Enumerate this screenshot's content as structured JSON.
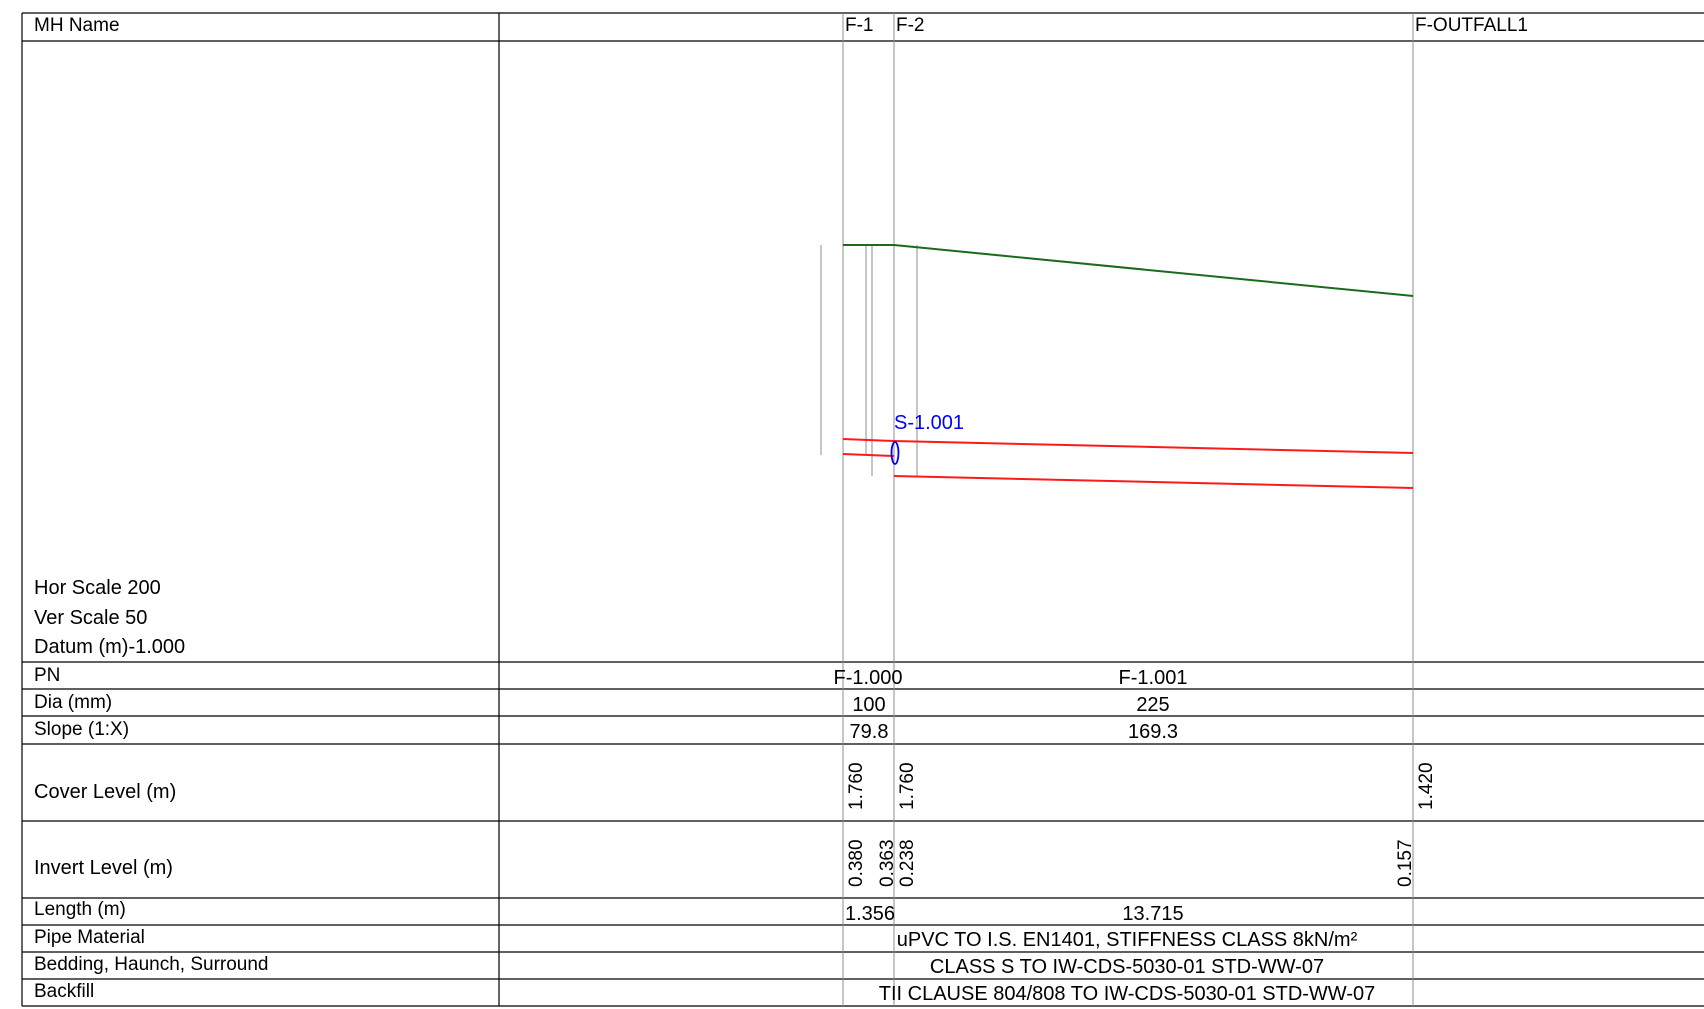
{
  "header": {
    "mh_name_label": "MH Name",
    "manholes": [
      "F-1",
      "F-2",
      "F-OUTFALL1"
    ]
  },
  "profile": {
    "scales": {
      "hor": "Hor Scale 200",
      "ver": "Ver Scale 50",
      "datum": "Datum (m)-1.000"
    },
    "pipe_label": "S-1.001",
    "colors": {
      "ground": "#1a6b1a",
      "pipe": "#ff1a1a",
      "pipe_label": "#0000ff",
      "grid": "#000000",
      "chainage": "#8c8c8c"
    }
  },
  "rows": {
    "pn": {
      "label": "PN",
      "values": [
        "F-1.000",
        "F-1.001"
      ]
    },
    "dia": {
      "label": "Dia (mm)",
      "values": [
        "100",
        "225"
      ]
    },
    "slope": {
      "label": "Slope (1:X)",
      "values": [
        "79.8",
        "169.3"
      ]
    },
    "cover": {
      "label": "Cover Level (m)",
      "values": [
        "1.760",
        "1.760",
        "1.420"
      ]
    },
    "invert": {
      "label": "Invert Level (m)",
      "values": [
        "0.380",
        "0.363",
        "0.238",
        "0.157"
      ]
    },
    "length": {
      "label": "Length (m)",
      "values": [
        "1.356",
        "13.715"
      ]
    },
    "material": {
      "label": "Pipe Material",
      "value": "uPVC  TO I.S. EN1401, STIFFNESS CLASS 8kN/m²"
    },
    "bedding": {
      "label": "Bedding, Haunch, Surround",
      "value": "CLASS S TO IW-CDS-5030-01 STD-WW-07"
    },
    "backfill": {
      "label": "Backfill",
      "value": "TII CLAUSE 804/808 TO IW-CDS-5030-01 STD-WW-07"
    }
  }
}
